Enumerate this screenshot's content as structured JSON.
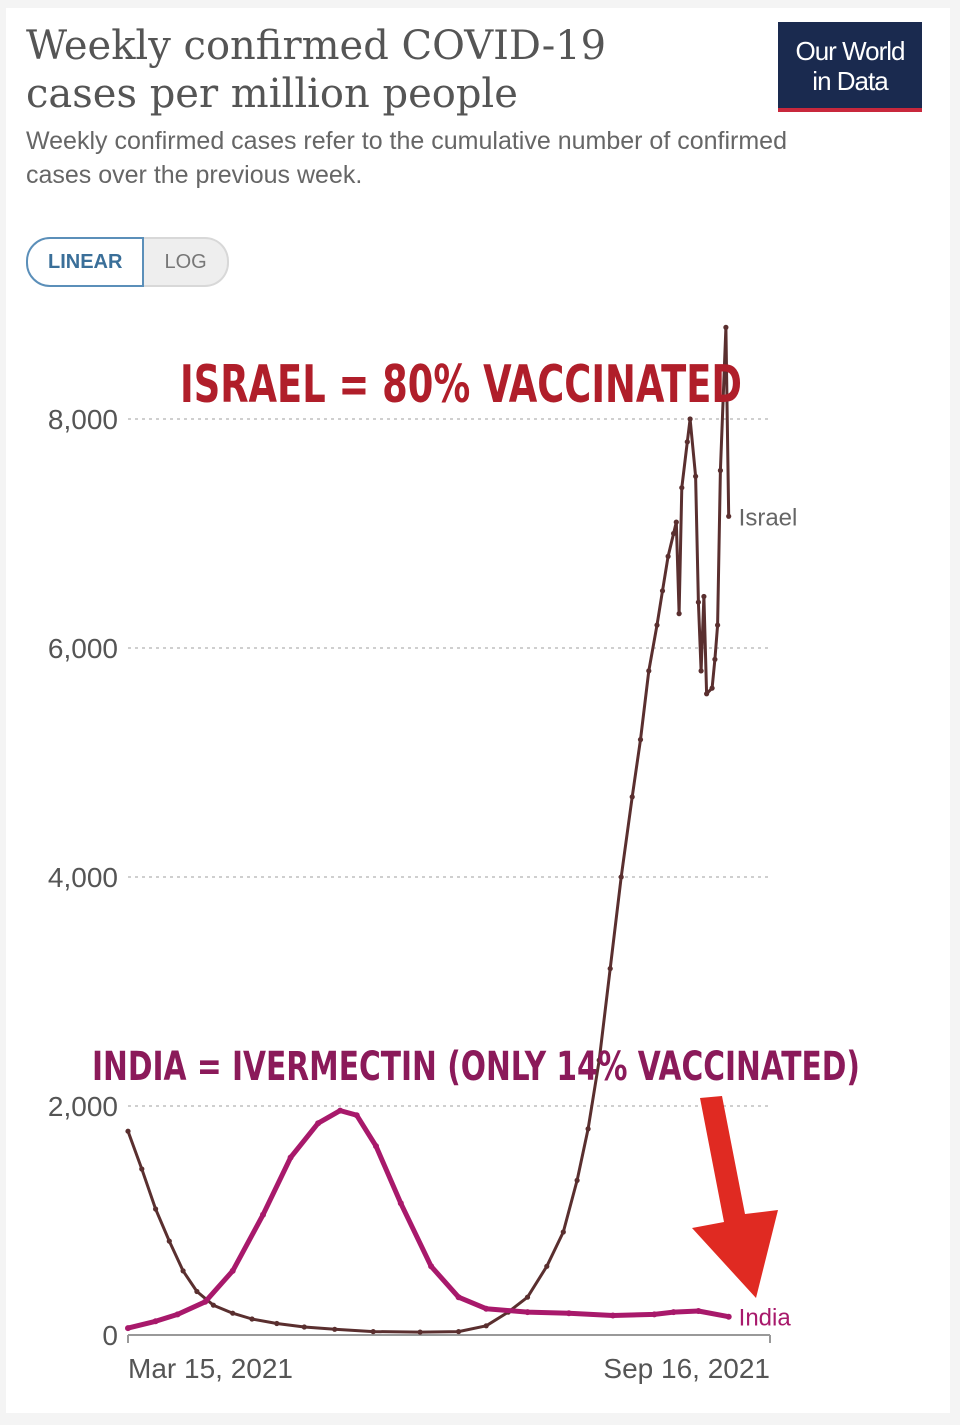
{
  "header": {
    "title": "Weekly confirmed COVID-19 cases per million people",
    "subtitle": "Weekly confirmed cases refer to the cumulative number of confirmed cases over the previous week.",
    "logo_line1": "Our World",
    "logo_line2": "in Data"
  },
  "scale_toggle": {
    "linear_label": "LINEAR",
    "log_label": "LOG",
    "selected": "LINEAR"
  },
  "annotations": {
    "israel": "ISRAEL = 80% VACCINATED",
    "india": "INDIA = IVERMECTIN (ONLY 14% VACCINATED)"
  },
  "colors": {
    "israel": "#5a2f2f",
    "india": "#a8196b",
    "annotation_israel": "#b01e2a",
    "annotation_india": "#8b1a5a",
    "arrow": "#e02a22",
    "grid": "#cfcfcf",
    "axis_text": "#555555"
  },
  "chart_data": {
    "type": "line",
    "title": "Weekly confirmed COVID-19 cases per million people",
    "ylim": [
      0,
      8800
    ],
    "yticks": [
      "0",
      "2,000",
      "4,000",
      "6,000",
      "8,000"
    ],
    "xlim": [
      "2021-02-15",
      "2021-10-06"
    ],
    "x_tick_labels": [
      "Mar 15, 2021",
      "Sep 16, 2021"
    ],
    "grid": true,
    "series": [
      {
        "name": "Israel",
        "points": [
          [
            "2021-02-15",
            1780
          ],
          [
            "2021-02-20",
            1450
          ],
          [
            "2021-02-25",
            1100
          ],
          [
            "2021-03-02",
            820
          ],
          [
            "2021-03-07",
            560
          ],
          [
            "2021-03-12",
            380
          ],
          [
            "2021-03-18",
            260
          ],
          [
            "2021-03-25",
            190
          ],
          [
            "2021-04-01",
            140
          ],
          [
            "2021-04-10",
            100
          ],
          [
            "2021-04-20",
            70
          ],
          [
            "2021-05-01",
            50
          ],
          [
            "2021-05-15",
            30
          ],
          [
            "2021-06-01",
            25
          ],
          [
            "2021-06-15",
            30
          ],
          [
            "2021-06-25",
            80
          ],
          [
            "2021-07-03",
            200
          ],
          [
            "2021-07-10",
            330
          ],
          [
            "2021-07-17",
            600
          ],
          [
            "2021-07-23",
            900
          ],
          [
            "2021-07-28",
            1350
          ],
          [
            "2021-08-01",
            1800
          ],
          [
            "2021-08-05",
            2400
          ],
          [
            "2021-08-09",
            3200
          ],
          [
            "2021-08-13",
            4000
          ],
          [
            "2021-08-17",
            4700
          ],
          [
            "2021-08-20",
            5200
          ],
          [
            "2021-08-23",
            5800
          ],
          [
            "2021-08-26",
            6200
          ],
          [
            "2021-08-28",
            6500
          ],
          [
            "2021-08-30",
            6800
          ],
          [
            "2021-09-01",
            7000
          ],
          [
            "2021-09-02",
            7100
          ],
          [
            "2021-09-03",
            6300
          ],
          [
            "2021-09-04",
            7400
          ],
          [
            "2021-09-06",
            7800
          ],
          [
            "2021-09-07",
            8000
          ],
          [
            "2021-09-09",
            7500
          ],
          [
            "2021-09-10",
            6400
          ],
          [
            "2021-09-11",
            5800
          ],
          [
            "2021-09-12",
            6450
          ],
          [
            "2021-09-13",
            5600
          ],
          [
            "2021-09-15",
            5650
          ],
          [
            "2021-09-16",
            5900
          ],
          [
            "2021-09-17",
            6200
          ],
          [
            "2021-09-18",
            7550
          ],
          [
            "2021-09-20",
            8800
          ],
          [
            "2021-09-21",
            7150
          ]
        ]
      },
      {
        "name": "India",
        "points": [
          [
            "2021-02-15",
            60
          ],
          [
            "2021-02-25",
            120
          ],
          [
            "2021-03-05",
            180
          ],
          [
            "2021-03-15",
            290
          ],
          [
            "2021-03-25",
            560
          ],
          [
            "2021-04-05",
            1050
          ],
          [
            "2021-04-15",
            1550
          ],
          [
            "2021-04-25",
            1850
          ],
          [
            "2021-05-03",
            1960
          ],
          [
            "2021-05-09",
            1920
          ],
          [
            "2021-05-16",
            1650
          ],
          [
            "2021-05-25",
            1150
          ],
          [
            "2021-06-05",
            600
          ],
          [
            "2021-06-15",
            330
          ],
          [
            "2021-06-25",
            230
          ],
          [
            "2021-07-10",
            200
          ],
          [
            "2021-07-25",
            190
          ],
          [
            "2021-08-10",
            170
          ],
          [
            "2021-08-25",
            180
          ],
          [
            "2021-09-01",
            200
          ],
          [
            "2021-09-10",
            210
          ],
          [
            "2021-09-21",
            160
          ]
        ]
      }
    ]
  }
}
